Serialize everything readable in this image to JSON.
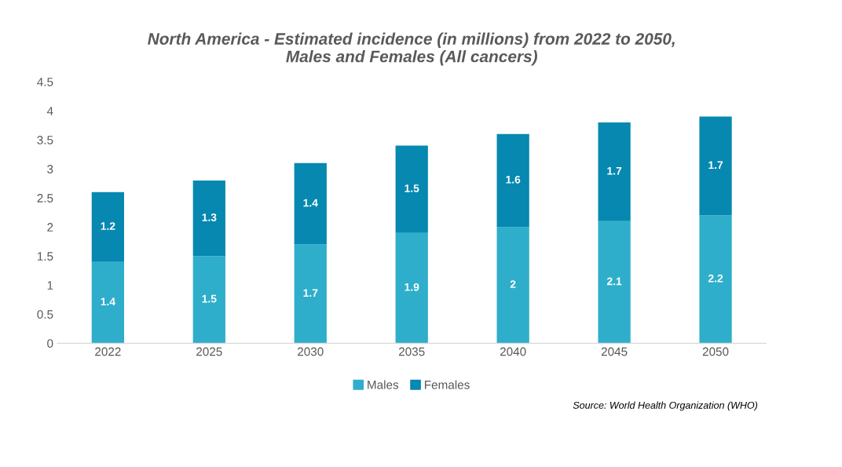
{
  "chart_data": {
    "type": "bar",
    "stacked": true,
    "title": "North America - Estimated incidence (in millions) from 2022 to 2050,\nMales and Females (All cancers)",
    "categories": [
      "2022",
      "2025",
      "2030",
      "2035",
      "2040",
      "2045",
      "2050"
    ],
    "series": [
      {
        "name": "Males",
        "color": "#2eaecb",
        "values": [
          1.4,
          1.5,
          1.7,
          1.9,
          2,
          2.1,
          2.2
        ]
      },
      {
        "name": "Females",
        "color": "#0688b0",
        "values": [
          1.2,
          1.3,
          1.4,
          1.5,
          1.6,
          1.7,
          1.7
        ]
      }
    ],
    "ylim": [
      0,
      4.5
    ],
    "yticks": [
      0,
      0.5,
      1,
      1.5,
      2,
      2.5,
      3,
      3.5,
      4,
      4.5
    ],
    "data_labels": true,
    "grid": false,
    "legend": "bottom",
    "annotations": [
      "Source: World Health Organization (WHO)"
    ]
  }
}
